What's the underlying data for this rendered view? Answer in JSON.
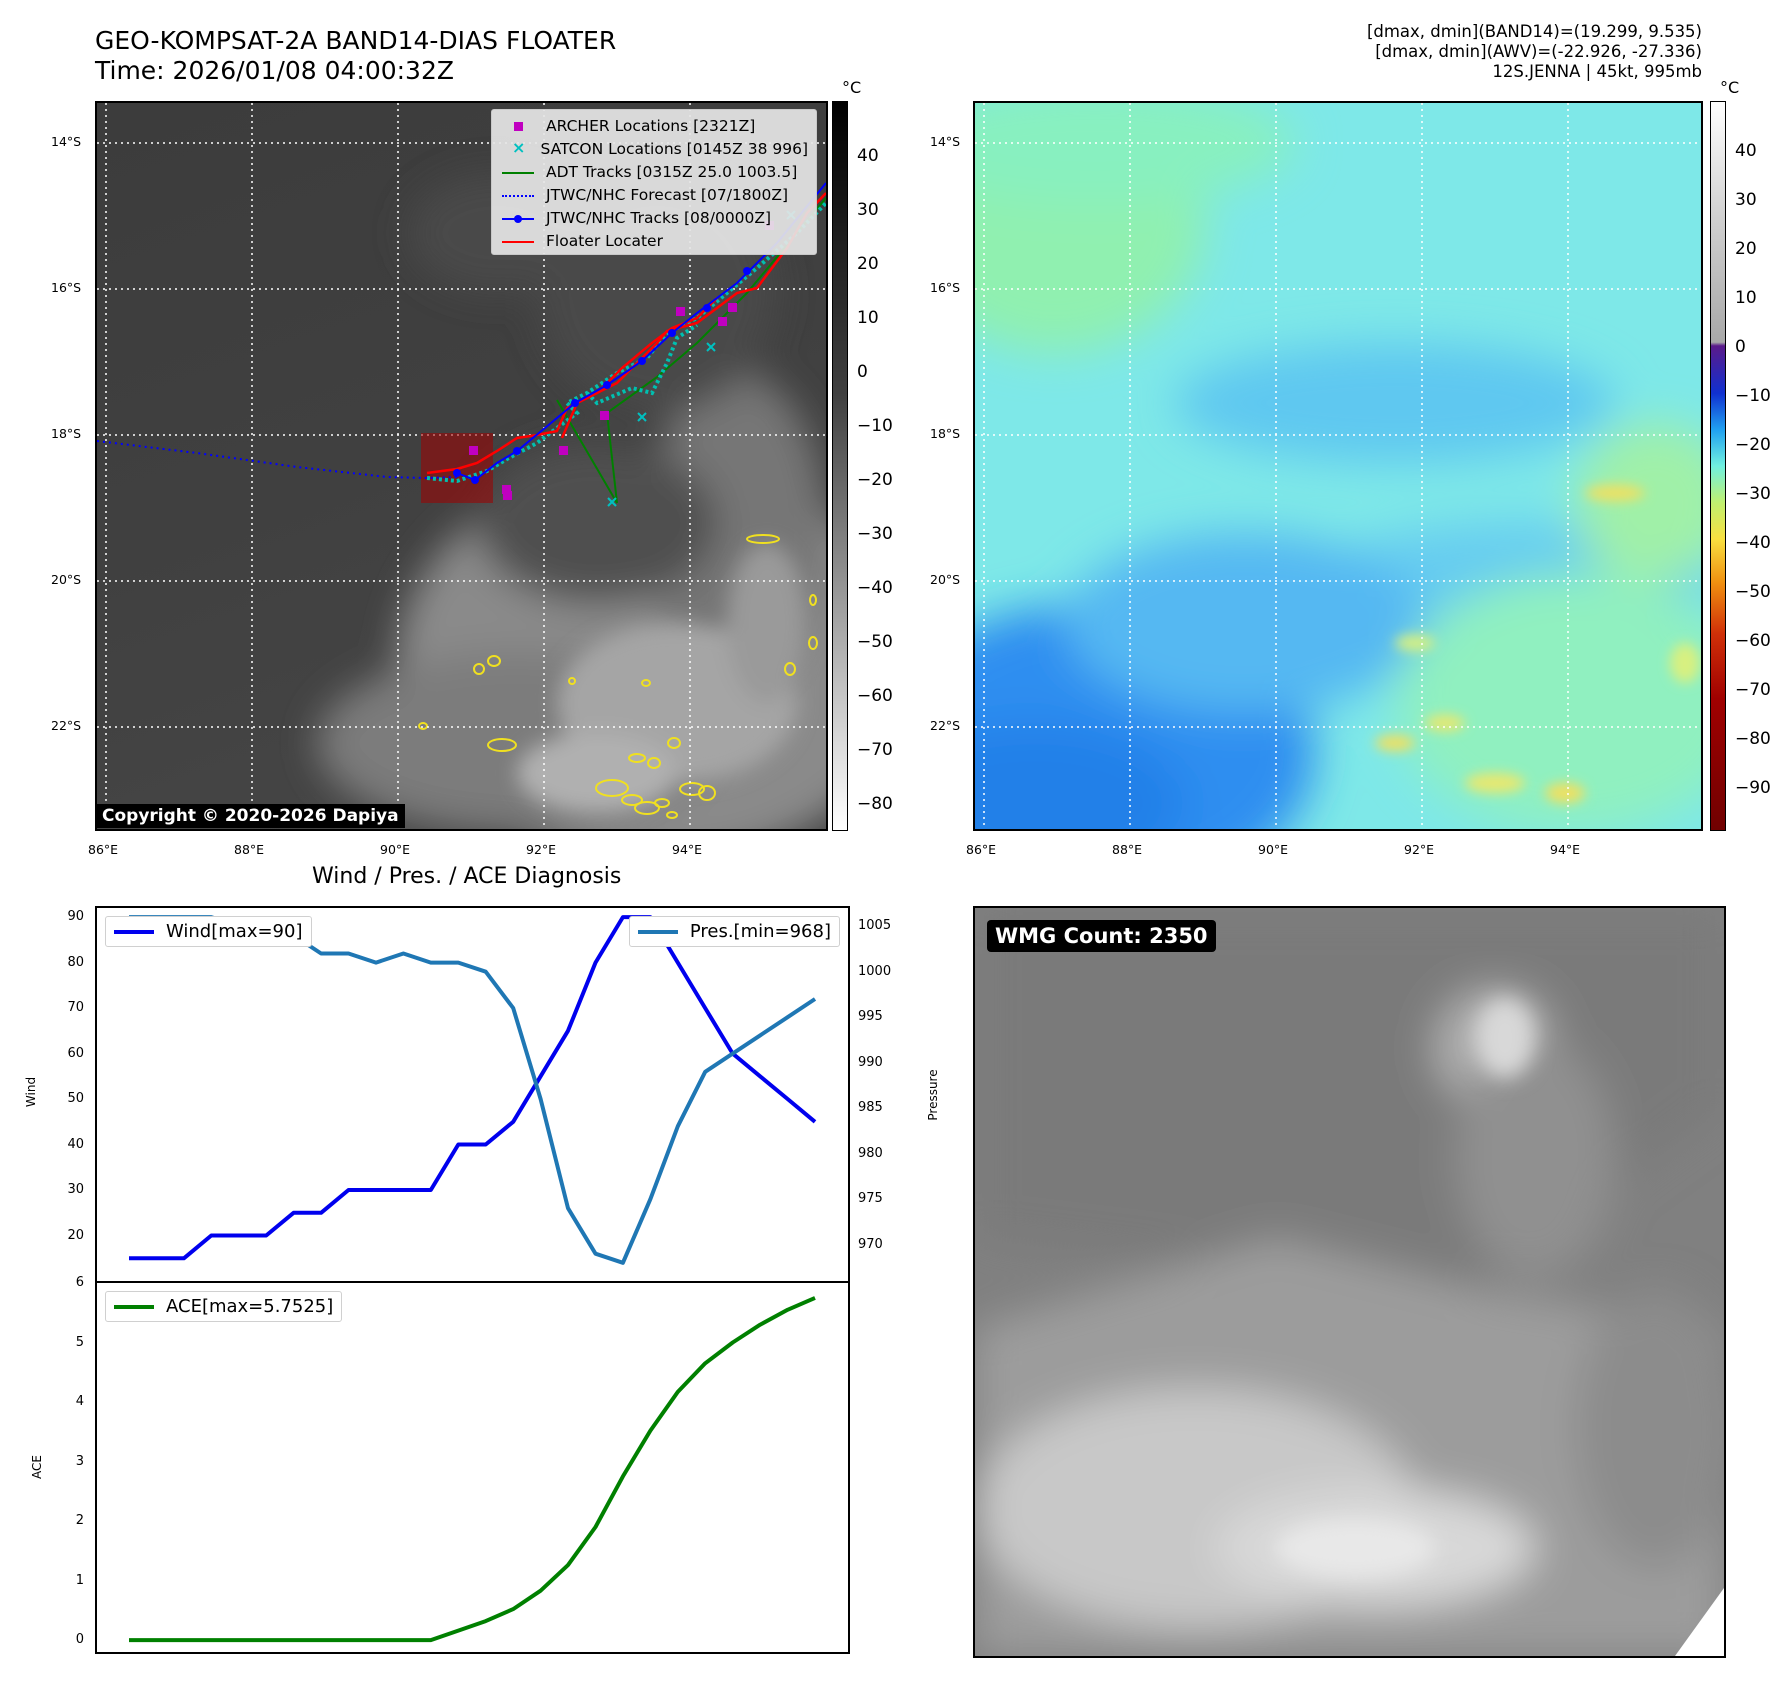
{
  "header": {
    "title_line1": "GEO-KOMPSAT-2A BAND14-DIAS FLOATER",
    "title_line2": "Time: 2026/01/08 04:00:32Z",
    "right_line1": "[dmax, dmin](BAND14)=(19.299, 9.535)",
    "right_line2": "[dmax, dmin](AWV)=(-22.926, -27.336)",
    "right_line3": "12S.JENNA | 45kt, 995mb"
  },
  "map": {
    "lat_labels": [
      "14°S",
      "16°S",
      "18°S",
      "20°S",
      "22°S"
    ],
    "lon_labels": [
      "86°E",
      "88°E",
      "90°E",
      "92°E",
      "94°E"
    ],
    "copyright": "Copyright © 2020-2026 Dapiya",
    "legend": [
      {
        "label": "ARCHER Locations [2321Z]",
        "color": "#c000c0"
      },
      {
        "label": "SATCON Locations [0145Z 38 996]",
        "color": "#00c0c0"
      },
      {
        "label": "ADT Tracks [0315Z 25.0 1003.5]",
        "color": "#008000"
      },
      {
        "label": "JTWC/NHC Forecast [07/1800Z]",
        "color": "#0000ff"
      },
      {
        "label": "JTWC/NHC Tracks [08/0000Z]",
        "color": "#0000ff"
      },
      {
        "label": "Floater Locater",
        "color": "#ff0000"
      }
    ]
  },
  "colorbar_ir": {
    "unit": "°C",
    "ticks": [
      "40",
      "30",
      "20",
      "10",
      "0",
      "−10",
      "−20",
      "−30",
      "−40",
      "−50",
      "−60",
      "−70",
      "−80"
    ]
  },
  "colorbar_wv": {
    "unit": "°C",
    "ticks": [
      "40",
      "30",
      "20",
      "10",
      "0",
      "−10",
      "−20",
      "−30",
      "−40",
      "−50",
      "−60",
      "−70",
      "−80",
      "−90"
    ]
  },
  "diagnosis": {
    "title": "Wind / Pres. / ACE Diagnosis",
    "wind_label": "Wind",
    "pres_label": "Pressure",
    "ace_label": "ACE",
    "wind_legend": "Wind[max=90]",
    "pres_legend": "Pres.[min=968]",
    "ace_legend": "ACE[max=5.7525]",
    "wind_ticks": [
      "90",
      "80",
      "70",
      "60",
      "50",
      "40",
      "30",
      "20"
    ],
    "pres_ticks": [
      "1005",
      "1000",
      "995",
      "990",
      "985",
      "980",
      "975",
      "970"
    ],
    "ace_ticks": [
      "6",
      "5",
      "4",
      "3",
      "2",
      "1",
      "0"
    ]
  },
  "wmg": {
    "label": "WMG Count: 2350"
  },
  "chart_data": [
    {
      "type": "line",
      "title": "Wind / Pres. / ACE Diagnosis",
      "ylabel": "Wind",
      "ylim": [
        10,
        92
      ],
      "series": [
        {
          "name": "Wind[max=90]",
          "color": "#0000ee",
          "values": [
            15,
            15,
            15,
            20,
            20,
            20,
            25,
            25,
            30,
            30,
            30,
            30,
            40,
            40,
            45,
            55,
            65,
            80,
            90,
            90,
            80,
            70,
            60,
            55,
            50,
            45
          ]
        }
      ]
    },
    {
      "type": "line",
      "ylabel": "Pressure",
      "ylim": [
        966,
        1007
      ],
      "series": [
        {
          "name": "Pres.[min=968]",
          "color": "#1f77b4",
          "values": [
            1006,
            1006,
            1006,
            1006,
            1005,
            1005,
            1004,
            1002,
            1002,
            1001,
            1002,
            1001,
            1001,
            1000,
            996,
            986,
            974,
            969,
            968,
            975,
            983,
            989,
            991,
            993,
            995,
            997
          ]
        }
      ]
    },
    {
      "type": "line",
      "ylabel": "ACE",
      "ylim": [
        -0.2,
        6
      ],
      "series": [
        {
          "name": "ACE[max=5.7525]",
          "color": "#008000",
          "values": [
            0,
            0,
            0,
            0,
            0,
            0,
            0,
            0,
            0,
            0,
            0,
            0,
            0.16,
            0.32,
            0.52,
            0.83,
            1.26,
            1.9,
            2.75,
            3.52,
            4.17,
            4.65,
            5.0,
            5.3,
            5.55,
            5.75
          ]
        }
      ]
    }
  ]
}
